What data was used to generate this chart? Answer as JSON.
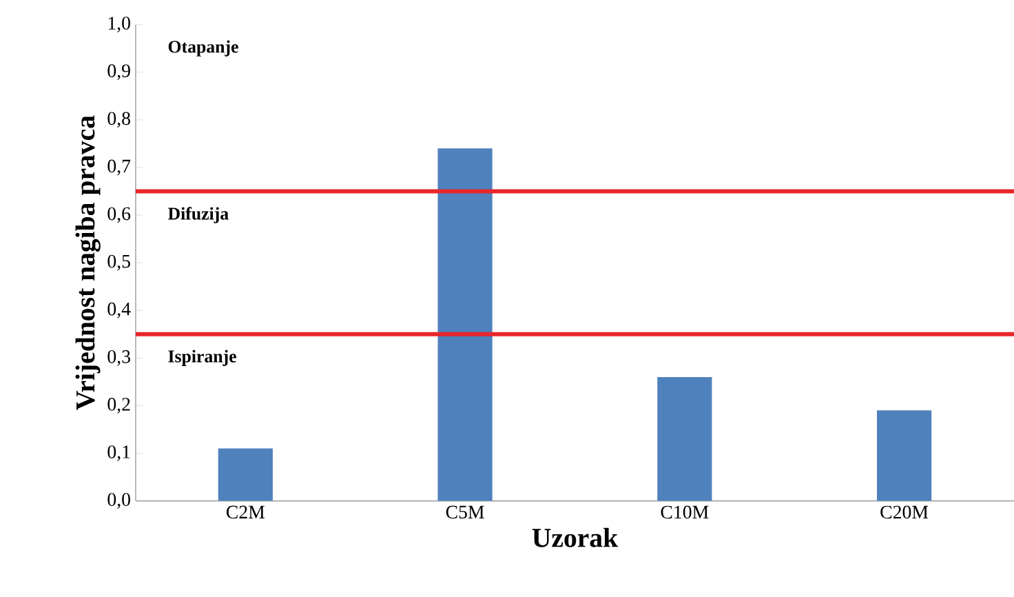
{
  "chart_data": {
    "type": "bar",
    "xlabel": "Uzorak",
    "ylabel": "Vrijednost nagiba pravca",
    "categories": [
      "C2M",
      "C5M",
      "C10M",
      "C20M"
    ],
    "values": [
      0.11,
      0.74,
      0.26,
      0.19
    ],
    "color": "#4f81bd",
    "ylim": [
      0,
      1
    ],
    "yticks": [
      {
        "value": 0,
        "label": "0,0"
      },
      {
        "value": 0.1,
        "label": "0,1"
      },
      {
        "value": 0.2,
        "label": "0,2"
      },
      {
        "value": 0.3,
        "label": "0,3"
      },
      {
        "value": 0.4,
        "label": "0,4"
      },
      {
        "value": 0.5,
        "label": "0,5"
      },
      {
        "value": 0.6,
        "label": "0,6"
      },
      {
        "value": 0.7,
        "label": "0,7"
      },
      {
        "value": 0.8,
        "label": "0,8"
      },
      {
        "value": 0.9,
        "label": "0,9"
      },
      {
        "value": 1,
        "label": "1,0"
      }
    ],
    "ref_lines": [
      {
        "axis": "y",
        "value": 0.65,
        "color": "#e8262a"
      },
      {
        "axis": "y",
        "value": 0.35,
        "color": "#e8262a"
      }
    ],
    "annotations": [
      "Otapanje",
      "Difuzija",
      "Ispiranje"
    ],
    "grid": false
  }
}
